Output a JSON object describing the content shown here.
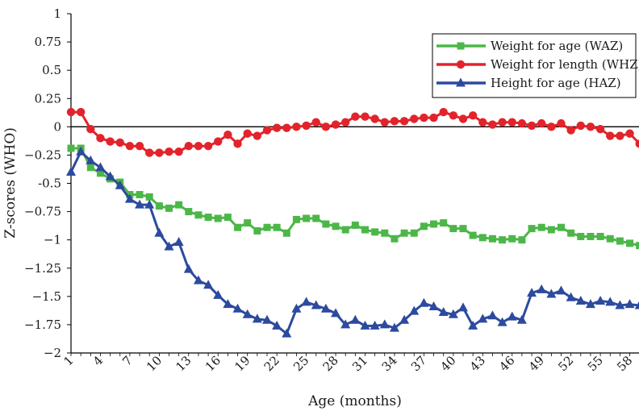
{
  "chart_data": {
    "type": "line",
    "xlabel": "Age (months)",
    "ylabel": "Z-scores (WHO)",
    "ylim": [
      -2,
      1
    ],
    "yticks": [
      "1",
      "0.75",
      "0.5",
      "0.25",
      "0",
      "−0.25",
      "-0.5",
      "−0.75",
      "−1",
      "−1.25",
      "−1.5",
      "−1.75",
      "−2"
    ],
    "xlim": [
      1,
      60
    ],
    "xticks": [
      "1",
      "4",
      "7",
      "10",
      "13",
      "16",
      "19",
      "22",
      "25",
      "28",
      "31",
      "34",
      "37",
      "40",
      "43",
      "46",
      "49",
      "52",
      "55",
      "58"
    ],
    "reference_line_y": 0,
    "grid": false,
    "legend_position": "top-right",
    "x": [
      1,
      2,
      3,
      4,
      5,
      6,
      7,
      8,
      9,
      10,
      11,
      12,
      13,
      14,
      15,
      16,
      17,
      18,
      19,
      20,
      21,
      22,
      23,
      24,
      25,
      26,
      27,
      28,
      29,
      30,
      31,
      32,
      33,
      34,
      35,
      36,
      37,
      38,
      39,
      40,
      41,
      42,
      43,
      44,
      45,
      46,
      47,
      48,
      49,
      50,
      51,
      52,
      53,
      54,
      55,
      56,
      57,
      58,
      59,
      60
    ],
    "series": [
      {
        "name": "Weight for age (WAZ)",
        "color": "#4cb748",
        "marker": "square",
        "values": [
          -0.19,
          -0.19,
          -0.36,
          -0.41,
          -0.46,
          -0.49,
          -0.6,
          -0.6,
          -0.62,
          -0.7,
          -0.72,
          -0.69,
          -0.75,
          -0.78,
          -0.8,
          -0.81,
          -0.8,
          -0.89,
          -0.85,
          -0.92,
          -0.89,
          -0.89,
          -0.94,
          -0.82,
          -0.81,
          -0.81,
          -0.86,
          -0.88,
          -0.91,
          -0.87,
          -0.91,
          -0.93,
          -0.94,
          -0.99,
          -0.94,
          -0.94,
          -0.88,
          -0.86,
          -0.85,
          -0.9,
          -0.9,
          -0.96,
          -0.98,
          -0.99,
          -1.0,
          -0.99,
          -1.0,
          -0.9,
          -0.89,
          -0.91,
          -0.89,
          -0.94,
          -0.97,
          -0.97,
          -0.97,
          -0.99,
          -1.01,
          -1.03,
          -1.05,
          -1.09
        ]
      },
      {
        "name": "Weight for length (WHZ)",
        "color": "#e3232b",
        "marker": "circle",
        "values": [
          0.13,
          0.13,
          -0.02,
          -0.1,
          -0.13,
          -0.14,
          -0.17,
          -0.17,
          -0.23,
          -0.23,
          -0.22,
          -0.22,
          -0.17,
          -0.17,
          -0.17,
          -0.13,
          -0.07,
          -0.15,
          -0.06,
          -0.08,
          -0.03,
          -0.01,
          -0.01,
          0.0,
          0.01,
          0.04,
          0.0,
          0.02,
          0.04,
          0.09,
          0.09,
          0.07,
          0.04,
          0.05,
          0.05,
          0.07,
          0.08,
          0.08,
          0.13,
          0.1,
          0.07,
          0.1,
          0.04,
          0.02,
          0.04,
          0.04,
          0.03,
          0.01,
          0.03,
          0.0,
          0.03,
          -0.03,
          0.01,
          0.0,
          -0.02,
          -0.08,
          -0.08,
          -0.06,
          -0.15,
          -0.15
        ]
      },
      {
        "name": "Height for age (HAZ)",
        "color": "#2c4a9e",
        "marker": "triangle",
        "values": [
          -0.4,
          -0.22,
          -0.3,
          -0.36,
          -0.44,
          -0.52,
          -0.64,
          -0.69,
          -0.69,
          -0.94,
          -1.06,
          -1.02,
          -1.26,
          -1.36,
          -1.4,
          -1.49,
          -1.57,
          -1.61,
          -1.66,
          -1.7,
          -1.71,
          -1.76,
          -1.83,
          -1.61,
          -1.55,
          -1.58,
          -1.61,
          -1.65,
          -1.75,
          -1.71,
          -1.76,
          -1.76,
          -1.75,
          -1.78,
          -1.71,
          -1.63,
          -1.56,
          -1.59,
          -1.64,
          -1.66,
          -1.6,
          -1.76,
          -1.7,
          -1.67,
          -1.73,
          -1.68,
          -1.71,
          -1.47,
          -1.44,
          -1.48,
          -1.45,
          -1.51,
          -1.54,
          -1.57,
          -1.54,
          -1.55,
          -1.58,
          -1.57,
          -1.58,
          -1.58
        ]
      }
    ]
  }
}
